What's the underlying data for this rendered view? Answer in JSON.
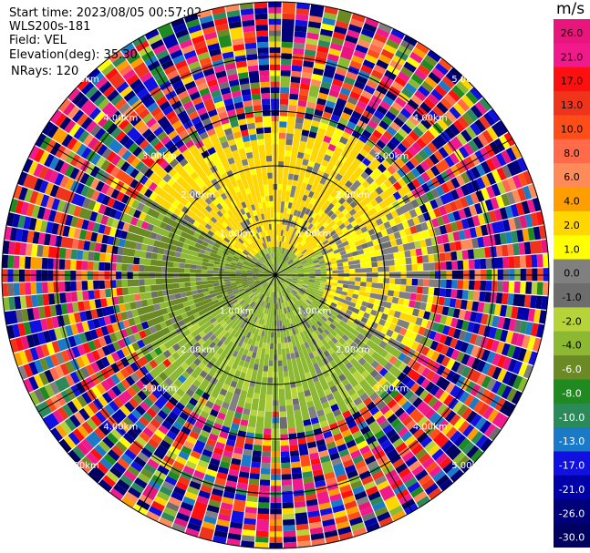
{
  "header": {
    "start_time": "Start time: 2023/08/05 00:57:02",
    "station": "WLS200s-181",
    "field": "Field: VEL",
    "elevation": "Elevation(deg): 35.30",
    "nrays": "NRays: 120"
  },
  "colorbar": {
    "unit": "m/s",
    "ticks": [
      "26.0",
      "21.0",
      "17.0",
      "13.0",
      "10.0",
      "8.0",
      "6.0",
      "4.0",
      "2.0",
      "1.0",
      "0.0",
      "-1.0",
      "-2.0",
      "-4.0",
      "-6.0",
      "-8.0",
      "-10.0",
      "-13.0",
      "-17.0",
      "-21.0",
      "-26.0",
      "-30.0"
    ],
    "colors": [
      "#e8167c",
      "#f01a8c",
      "#ff1010",
      "#f0341c",
      "#ff4d1a",
      "#ff6a4a",
      "#ff8a5a",
      "#ff9e00",
      "#ffd600",
      "#ffff00",
      "#808080",
      "#6d6d6d",
      "#b6d33a",
      "#8cb832",
      "#6b8a23",
      "#1f8a1f",
      "#2a8a5a",
      "#1a7ac8",
      "#1010e0",
      "#0000a8",
      "#00007a",
      "#000060"
    ]
  },
  "chart_data": {
    "type": "heatmap",
    "projection": "polar-ppi",
    "field": "VEL",
    "units": "m/s",
    "n_rays": 120,
    "range_ring_labels": [
      "1.00km",
      "2.00km",
      "3.00km",
      "4.00km",
      "5.00km"
    ],
    "color_scale": {
      "bounds": [
        -30.0,
        -26.0,
        -21.0,
        -17.0,
        -13.0,
        -10.0,
        -8.0,
        -6.0,
        -4.0,
        -2.0,
        -1.0,
        0.0,
        1.0,
        2.0,
        4.0,
        6.0,
        8.0,
        10.0,
        13.0,
        17.0,
        21.0,
        26.0
      ],
      "colors": [
        "#000060",
        "#00007a",
        "#0000a8",
        "#1010e0",
        "#1a7ac8",
        "#2a8a5a",
        "#1f8a1f",
        "#6b8a23",
        "#8cb832",
        "#b6d33a",
        "#6d6d6d",
        "#808080",
        "#ffff00",
        "#ffd600",
        "#ff9e00",
        "#ff8a5a",
        "#ff6a4a",
        "#ff4d1a",
        "#f0341c",
        "#ff1010",
        "#f01a8c",
        "#e8167c"
      ]
    },
    "grid": true
  }
}
